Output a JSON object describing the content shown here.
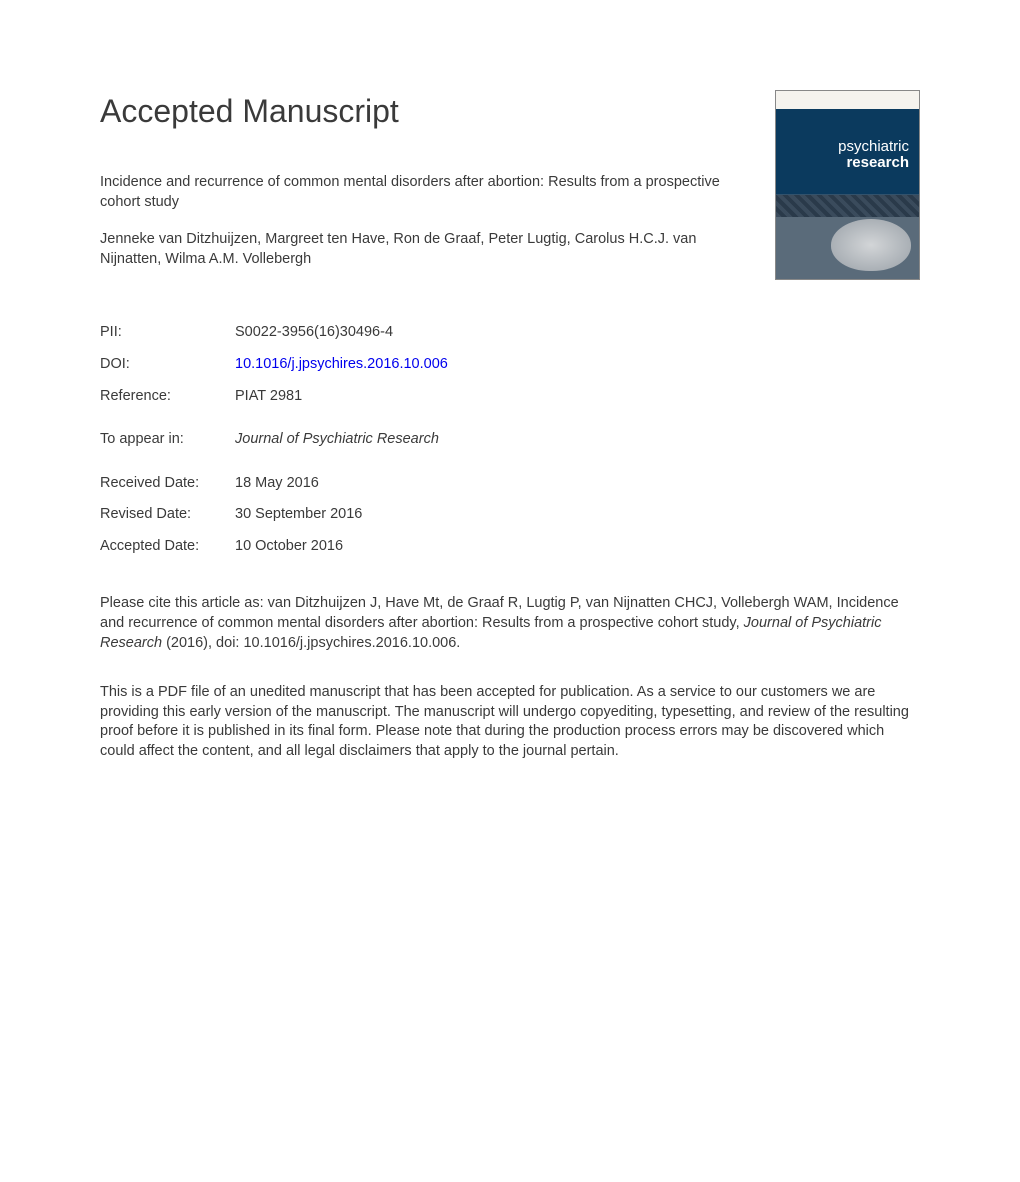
{
  "heading": "Accepted Manuscript",
  "article_title": "Incidence and recurrence of common mental disorders after abortion: Results from a prospective cohort study",
  "authors": "Jenneke van Ditzhuijzen, Margreet ten Have, Ron de Graaf, Peter Lugtig, Carolus H.C.J. van Nijnatten, Wilma A.M. Vollebergh",
  "meta": {
    "pii_label": "PII:",
    "pii_value": "S0022-3956(16)30496-4",
    "doi_label": "DOI:",
    "doi_value": "10.1016/j.jpsychires.2016.10.006",
    "ref_label": "Reference:",
    "ref_value": "PIAT 2981",
    "toappear_label": "To appear in:",
    "toappear_value": "Journal of Psychiatric Research",
    "received_label": "Received Date:",
    "received_value": "18 May 2016",
    "revised_label": "Revised Date:",
    "revised_value": "30 September 2016",
    "accepted_label": "Accepted Date:",
    "accepted_value": "10 October 2016"
  },
  "citation_prefix": "Please cite this article as: van Ditzhuijzen J, Have Mt, de Graaf R, Lugtig P, van Nijnatten CHCJ, Vollebergh WAM, Incidence and recurrence of common mental disorders after abortion: Results from a prospective cohort study, ",
  "citation_journal": "Journal of Psychiatric Research",
  "citation_suffix": " (2016), doi: 10.1016/j.jpsychires.2016.10.006.",
  "disclaimer": "This is a PDF file of an unedited manuscript that has been accepted for publication. As a service to our customers we are providing this early version of the manuscript. The manuscript will undergo copyediting, typesetting, and review of the resulting proof before it is published in its final form. Please note that during the production process errors may be discovered which could affect the content, and all legal disclaimers that apply to the journal pertain.",
  "cover": {
    "line1": "psychiatric",
    "line2": "research"
  },
  "colors": {
    "text": "#3a3a3a",
    "link": "#0000ee",
    "cover_top": "#0b3a5e",
    "cover_bottom": "#5a6b7a"
  }
}
